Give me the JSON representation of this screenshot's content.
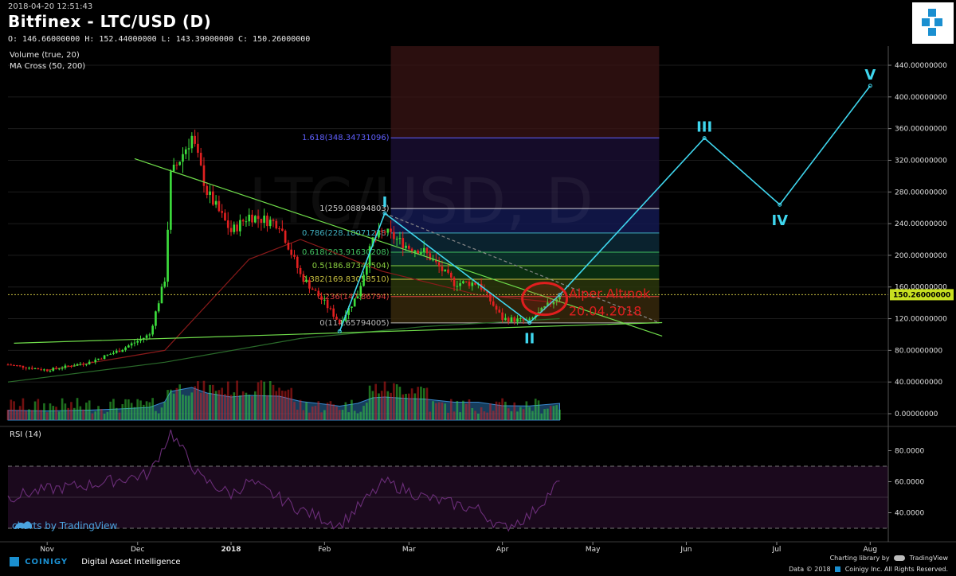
{
  "header": {
    "timestamp": "2018-04-20 12:51:43",
    "title": "Bitfinex - LTC/USD (D)",
    "ohlc": "O: 146.66000000 H: 152.44000000 L: 143.39000000 C: 150.26000000"
  },
  "indicators": {
    "volume": "Volume (true, 20)",
    "ma": "MA Cross (50, 200)",
    "rsi": "RSI (14)"
  },
  "watermark": "LTC/USD, D",
  "last_price": "150.26000000",
  "credits": {
    "tradingview": "charts by TradingView",
    "coinigy_brand": "COINIGY",
    "coinigy_tagline": "Digital Asset Intelligence",
    "charting_library": "Charting library by",
    "tradingview_small": "TradingView",
    "data_note": "Data © 2018",
    "copyright": "Coinigy Inc. All Rights Reserved."
  },
  "colors": {
    "background": "#000000",
    "bull": "#3cdc3c",
    "bear": "#e02020",
    "wave": "#3fd6ee",
    "trendline": "#6fdc4a",
    "annotation": "#e01e1e",
    "rsi": "#5a2a6a"
  },
  "chart_data": [
    {
      "type": "candlestick",
      "title": "Bitfinex - LTC/USD (D)",
      "x_ticks": [
        "Nov",
        "Dec",
        "2018",
        "Feb",
        "Mar",
        "Apr",
        "May",
        "Jun",
        "Jul",
        "Aug"
      ],
      "y_ticks": [
        "0.00000000",
        "40.00000000",
        "80.00000000",
        "120.00000000",
        "160.00000000",
        "200.00000000",
        "240.00000000",
        "280.00000000",
        "320.00000000",
        "360.00000000",
        "400.00000000",
        "440.00000000"
      ],
      "y_tick_values": [
        0,
        40,
        80,
        120,
        160,
        200,
        240,
        280,
        320,
        360,
        400,
        440
      ],
      "ylim": [
        -20,
        465
      ],
      "xlim": [
        "2017-10-19",
        "2018-08-07"
      ],
      "price_path": [
        {
          "date": "2017-10-19",
          "close": 62
        },
        {
          "date": "2017-11-01",
          "close": 55
        },
        {
          "date": "2017-11-15",
          "close": 65
        },
        {
          "date": "2017-11-25",
          "close": 80
        },
        {
          "date": "2017-12-05",
          "close": 100
        },
        {
          "date": "2017-12-10",
          "close": 170
        },
        {
          "date": "2017-12-12",
          "close": 300
        },
        {
          "date": "2017-12-19",
          "close": 350
        },
        {
          "date": "2017-12-24",
          "close": 280
        },
        {
          "date": "2018-01-01",
          "close": 230
        },
        {
          "date": "2018-01-07",
          "close": 250
        },
        {
          "date": "2018-01-17",
          "close": 240
        },
        {
          "date": "2018-01-24",
          "close": 175
        },
        {
          "date": "2018-02-01",
          "close": 140
        },
        {
          "date": "2018-02-06",
          "close": 115
        },
        {
          "date": "2018-02-12",
          "close": 150
        },
        {
          "date": "2018-02-17",
          "close": 220
        },
        {
          "date": "2018-02-21",
          "close": 230
        },
        {
          "date": "2018-03-01",
          "close": 210
        },
        {
          "date": "2018-03-06",
          "close": 205
        },
        {
          "date": "2018-03-16",
          "close": 165
        },
        {
          "date": "2018-03-24",
          "close": 165
        },
        {
          "date": "2018-04-01",
          "close": 120
        },
        {
          "date": "2018-04-10",
          "close": 117
        },
        {
          "date": "2018-04-14",
          "close": 130
        },
        {
          "date": "2018-04-20",
          "close": 150
        }
      ],
      "last_price": 150.26,
      "ma_cross": {
        "ma50": [
          {
            "date": "2017-11-01",
            "value": 55
          },
          {
            "date": "2017-12-10",
            "value": 80
          },
          {
            "date": "2018-01-07",
            "value": 195
          },
          {
            "date": "2018-01-24",
            "value": 220
          },
          {
            "date": "2018-02-20",
            "value": 180
          },
          {
            "date": "2018-03-24",
            "value": 150
          },
          {
            "date": "2018-04-20",
            "value": 140
          }
        ],
        "ma200": [
          {
            "date": "2017-10-19",
            "value": 40
          },
          {
            "date": "2017-12-10",
            "value": 65
          },
          {
            "date": "2018-01-24",
            "value": 95
          },
          {
            "date": "2018-03-06",
            "value": 110
          },
          {
            "date": "2018-04-20",
            "value": 120
          }
        ]
      },
      "fibonacci": {
        "date_range": [
          "2018-02-23",
          "2018-05-23"
        ],
        "levels": [
          {
            "ratio": "0",
            "label": "0(114.65794005)",
            "value": 114.65794005
          },
          {
            "ratio": "0.236",
            "label": "0.236(147.86794)",
            "value": 147.86794
          },
          {
            "ratio": "0.382",
            "label": "0.382(169.83058510)",
            "value": 169.8305851
          },
          {
            "ratio": "0.5",
            "label": "0.5(186.87344504)",
            "value": 186.87344504
          },
          {
            "ratio": "0.618",
            "label": "0.618(203.91630208)",
            "value": 203.91630208
          },
          {
            "ratio": "0.786",
            "label": "0.786(228.18071238)",
            "value": 228.18071238
          },
          {
            "ratio": "1",
            "label": "1(259.08894803)",
            "value": 259.08894803
          },
          {
            "ratio": "1.618",
            "label": "1.618(348.34731096)",
            "value": 348.34731096
          }
        ]
      },
      "elliott_waves": [
        {
          "label": "I",
          "date": "2018-02-21",
          "value": 253
        },
        {
          "label": "II",
          "date": "2018-04-10",
          "value": 115
        },
        {
          "label": "III",
          "date": "2018-06-07",
          "value": 348
        },
        {
          "label": "IV",
          "date": "2018-07-02",
          "value": 264
        },
        {
          "label": "V",
          "date": "2018-08-01",
          "value": 414
        }
      ],
      "wave_projection": [
        {
          "date": "2018-02-06",
          "value": 104
        },
        {
          "date": "2018-02-21",
          "value": 253
        },
        {
          "date": "2018-04-10",
          "value": 115
        },
        {
          "date": "2018-04-20",
          "value": 150
        },
        {
          "date": "2018-06-07",
          "value": 348
        },
        {
          "date": "2018-07-02",
          "value": 264
        },
        {
          "date": "2018-08-01",
          "value": 414
        }
      ],
      "trendlines": [
        {
          "from": {
            "date": "2017-11-30",
            "value": 322
          },
          "to": {
            "date": "2018-05-24",
            "value": 98
          }
        },
        {
          "from": {
            "date": "2017-10-21",
            "value": 89
          },
          "to": {
            "date": "2018-05-24",
            "value": 115
          }
        },
        {
          "from": {
            "date": "2018-02-06",
            "value": 104
          },
          "to": {
            "date": "2018-02-21",
            "value": 253
          }
        },
        {
          "from": {
            "date": "2018-02-21",
            "value": 253
          },
          "to": {
            "date": "2018-05-23",
            "value": 115
          }
        }
      ],
      "annotations": [
        {
          "text": "Alper Altınok",
          "date": "2018-04-23",
          "value": 146
        },
        {
          "text": "20.04.2018",
          "date": "2018-04-23",
          "value": 124
        }
      ]
    },
    {
      "type": "area",
      "title": "Volume (true, 20)",
      "y_tick": "0.00000000"
    },
    {
      "type": "line",
      "title": "RSI (14)",
      "y_ticks": [
        "40.0000",
        "60.0000",
        "80.0000"
      ],
      "y_tick_values": [
        40,
        60,
        80
      ],
      "ylim": [
        25,
        100
      ],
      "bands": [
        30,
        70
      ],
      "series": [
        {
          "date": "2017-10-19",
          "value": 50
        },
        {
          "date": "2017-11-01",
          "value": 55
        },
        {
          "date": "2017-11-15",
          "value": 58
        },
        {
          "date": "2017-12-05",
          "value": 65
        },
        {
          "date": "2017-12-12",
          "value": 92
        },
        {
          "date": "2017-12-22",
          "value": 62
        },
        {
          "date": "2018-01-01",
          "value": 52
        },
        {
          "date": "2018-01-07",
          "value": 60
        },
        {
          "date": "2018-01-24",
          "value": 42
        },
        {
          "date": "2018-02-06",
          "value": 32
        },
        {
          "date": "2018-02-21",
          "value": 60
        },
        {
          "date": "2018-03-06",
          "value": 50
        },
        {
          "date": "2018-03-24",
          "value": 42
        },
        {
          "date": "2018-04-01",
          "value": 30
        },
        {
          "date": "2018-04-10",
          "value": 38
        },
        {
          "date": "2018-04-20",
          "value": 60
        }
      ]
    }
  ]
}
